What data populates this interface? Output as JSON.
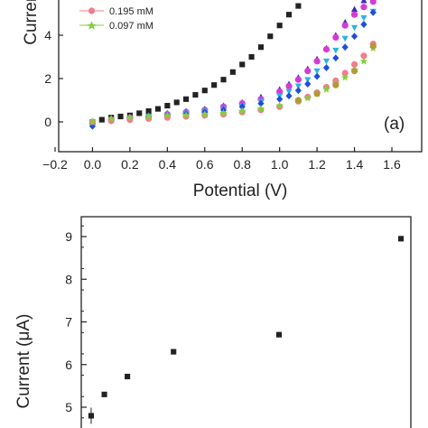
{
  "chart_data": [
    {
      "type": "scatter",
      "panel_label": "(a)",
      "xlabel": "Potential (V)",
      "ylabel": "Current",
      "xlim": [
        -0.2,
        1.6
      ],
      "ylim": [
        -0.7,
        6.3
      ],
      "x_ticks": [
        "−0.2",
        "0.0",
        "0.2",
        "0.4",
        "0.6",
        "0.8",
        "1.0",
        "1.2",
        "1.4",
        "1.6"
      ],
      "y_ticks": [
        "0",
        "2",
        "4"
      ],
      "legend": {
        "position": "top-left",
        "entries": [
          "0.195 mM",
          "0.097 mM"
        ]
      },
      "series": [
        {
          "name": "",
          "color": "#222222",
          "marker": "square",
          "x": [
            0.0,
            0.05,
            0.1,
            0.15,
            0.2,
            0.25,
            0.3,
            0.35,
            0.4,
            0.45,
            0.5,
            0.55,
            0.6,
            0.65,
            0.7,
            0.75,
            0.8,
            0.85,
            0.9,
            0.95,
            1.0,
            1.05,
            1.1
          ],
          "y": [
            0.0,
            0.1,
            0.2,
            0.25,
            0.3,
            0.4,
            0.5,
            0.6,
            0.75,
            0.9,
            1.05,
            1.25,
            1.45,
            1.7,
            1.95,
            2.3,
            2.65,
            3.0,
            3.45,
            3.95,
            4.45,
            4.95,
            5.35
          ]
        },
        {
          "name": "",
          "color": "#3b2db0",
          "marker": "triangle",
          "x": [
            0.0,
            0.1,
            0.2,
            0.3,
            0.4,
            0.5,
            0.6,
            0.7,
            0.8,
            0.9,
            1.0,
            1.05,
            1.1,
            1.15,
            1.2,
            1.25,
            1.3,
            1.35,
            1.4,
            1.45
          ],
          "y": [
            0.0,
            0.1,
            0.2,
            0.3,
            0.4,
            0.5,
            0.6,
            0.75,
            0.9,
            1.15,
            1.5,
            1.75,
            2.05,
            2.45,
            2.9,
            3.4,
            4.0,
            4.6,
            5.2,
            5.6
          ]
        },
        {
          "name": "",
          "color": "#d63ad6",
          "marker": "circle",
          "x": [
            0.0,
            0.1,
            0.2,
            0.3,
            0.4,
            0.5,
            0.6,
            0.7,
            0.8,
            0.9,
            1.0,
            1.05,
            1.1,
            1.15,
            1.2,
            1.25,
            1.3,
            1.35,
            1.4,
            1.45,
            1.5
          ],
          "y": [
            0.0,
            0.1,
            0.2,
            0.25,
            0.35,
            0.45,
            0.55,
            0.7,
            0.85,
            1.05,
            1.4,
            1.65,
            1.95,
            2.35,
            2.8,
            3.35,
            3.9,
            4.45,
            4.95,
            5.3,
            5.55
          ]
        },
        {
          "name": "",
          "color": "#27b3e8",
          "marker": "triangle-down",
          "x": [
            0.0,
            0.1,
            0.2,
            0.3,
            0.4,
            0.5,
            0.6,
            0.7,
            0.8,
            0.9,
            1.0,
            1.05,
            1.1,
            1.15,
            1.2,
            1.25,
            1.3,
            1.35,
            1.4,
            1.45,
            1.5
          ],
          "y": [
            0.0,
            0.1,
            0.15,
            0.25,
            0.3,
            0.4,
            0.5,
            0.6,
            0.75,
            0.95,
            1.2,
            1.4,
            1.65,
            1.95,
            2.35,
            2.8,
            3.3,
            3.85,
            4.35,
            4.8,
            5.1
          ]
        },
        {
          "name": "",
          "color": "#1f4fd8",
          "marker": "diamond",
          "x": [
            0.0,
            0.1,
            0.2,
            0.3,
            0.4,
            0.5,
            0.6,
            0.7,
            0.8,
            0.9,
            1.0,
            1.05,
            1.1,
            1.15,
            1.2,
            1.25,
            1.3,
            1.35,
            1.4,
            1.45,
            1.5
          ],
          "y": [
            -0.2,
            0.05,
            0.15,
            0.2,
            0.3,
            0.35,
            0.45,
            0.55,
            0.7,
            0.85,
            1.05,
            1.2,
            1.45,
            1.75,
            2.1,
            2.5,
            2.95,
            3.45,
            3.95,
            4.5,
            5.05
          ]
        },
        {
          "name": "0.195 mM",
          "color": "#f47b8c",
          "marker": "circle",
          "x": [
            0.0,
            0.1,
            0.2,
            0.3,
            0.4,
            0.5,
            0.6,
            0.7,
            0.8,
            0.9,
            1.0,
            1.1,
            1.15,
            1.2,
            1.25,
            1.3,
            1.35,
            1.4,
            1.45,
            1.5
          ],
          "y": [
            0.0,
            0.05,
            0.1,
            0.15,
            0.2,
            0.25,
            0.3,
            0.35,
            0.45,
            0.55,
            0.7,
            0.95,
            1.15,
            1.35,
            1.6,
            1.9,
            2.25,
            2.65,
            3.05,
            3.6
          ]
        },
        {
          "name": "0.097 mM",
          "color": "#7fd23a",
          "marker": "star",
          "x": [
            0.0,
            0.1,
            0.2,
            0.3,
            0.4,
            0.5,
            0.6,
            0.7,
            0.8,
            0.9,
            1.0,
            1.1,
            1.15,
            1.2,
            1.25,
            1.3,
            1.35,
            1.4,
            1.45,
            1.5
          ],
          "y": [
            0.0,
            0.15,
            0.2,
            0.25,
            0.3,
            0.3,
            0.35,
            0.4,
            0.5,
            0.6,
            0.75,
            0.95,
            1.1,
            1.3,
            1.5,
            1.75,
            2.05,
            2.4,
            2.8,
            3.4
          ]
        },
        {
          "name": "",
          "color": "#b09a3a",
          "marker": "circle",
          "x": [
            1.1,
            1.2,
            1.3,
            1.4,
            1.5
          ],
          "y": [
            1.0,
            1.3,
            1.7,
            2.35,
            3.5
          ]
        }
      ]
    },
    {
      "type": "scatter",
      "xlabel": "",
      "ylabel": "Current (μA)",
      "ylim": [
        4.7,
        9.45
      ],
      "xlim": [
        0,
        1
      ],
      "y_ticks": [
        "5",
        "6",
        "7",
        "8",
        "9"
      ],
      "series": [
        {
          "name": "",
          "color": "#222222",
          "marker": "square",
          "x": [
            0.03,
            0.07,
            0.14,
            0.28,
            0.6,
            0.97
          ],
          "y": [
            4.8,
            5.3,
            5.72,
            6.3,
            6.7,
            8.95
          ]
        }
      ]
    }
  ]
}
